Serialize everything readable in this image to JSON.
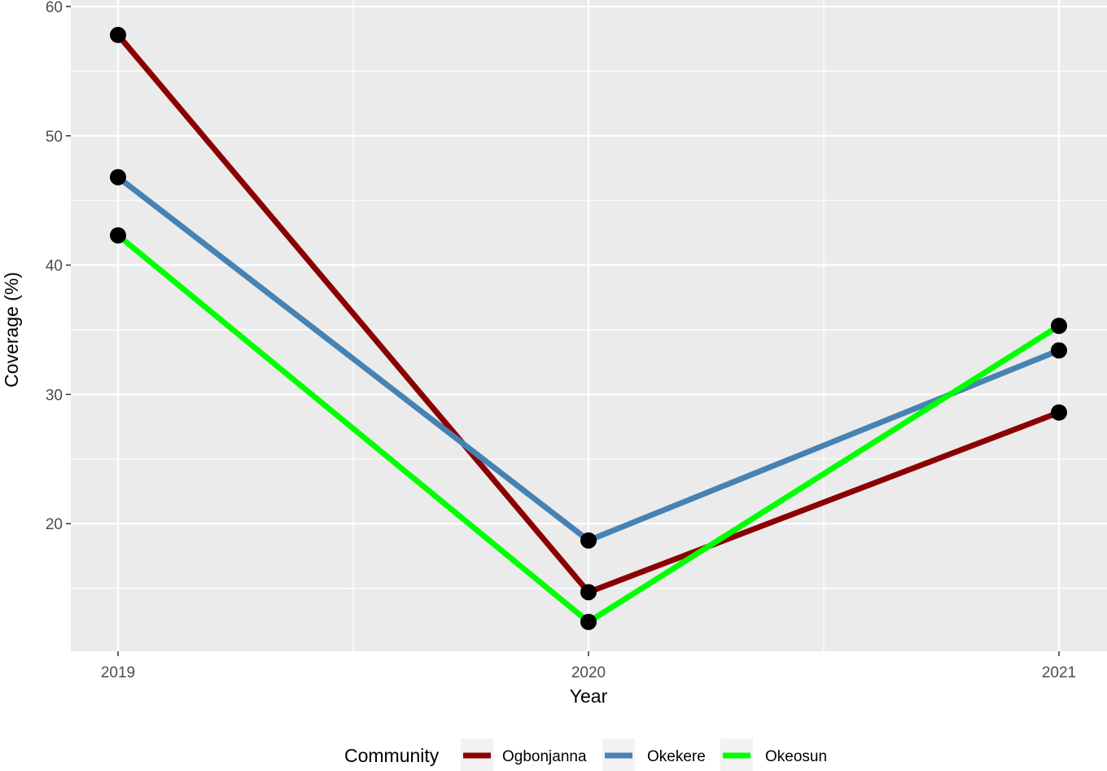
{
  "chart_data": {
    "type": "line",
    "x": [
      "2019",
      "2020",
      "2021"
    ],
    "series": [
      {
        "name": "Ogbonjanna",
        "color": "#8B0000",
        "values": [
          57.8,
          14.7,
          28.6
        ]
      },
      {
        "name": "Okekere",
        "color": "#4682B4",
        "values": [
          46.8,
          18.7,
          33.4
        ]
      },
      {
        "name": "Okeosun",
        "color": "#00FF00",
        "values": [
          42.3,
          12.4,
          35.3
        ]
      }
    ],
    "xlabel": "Year",
    "ylabel": "Coverage (%)",
    "ylim": [
      10,
      60
    ],
    "yticks": [
      "20",
      "30",
      "40",
      "50",
      "60"
    ],
    "grid": true,
    "legend": {
      "title": "Community",
      "placement": "bottom"
    },
    "point_color": "#000000",
    "panel_background": "#EBEBEB"
  }
}
